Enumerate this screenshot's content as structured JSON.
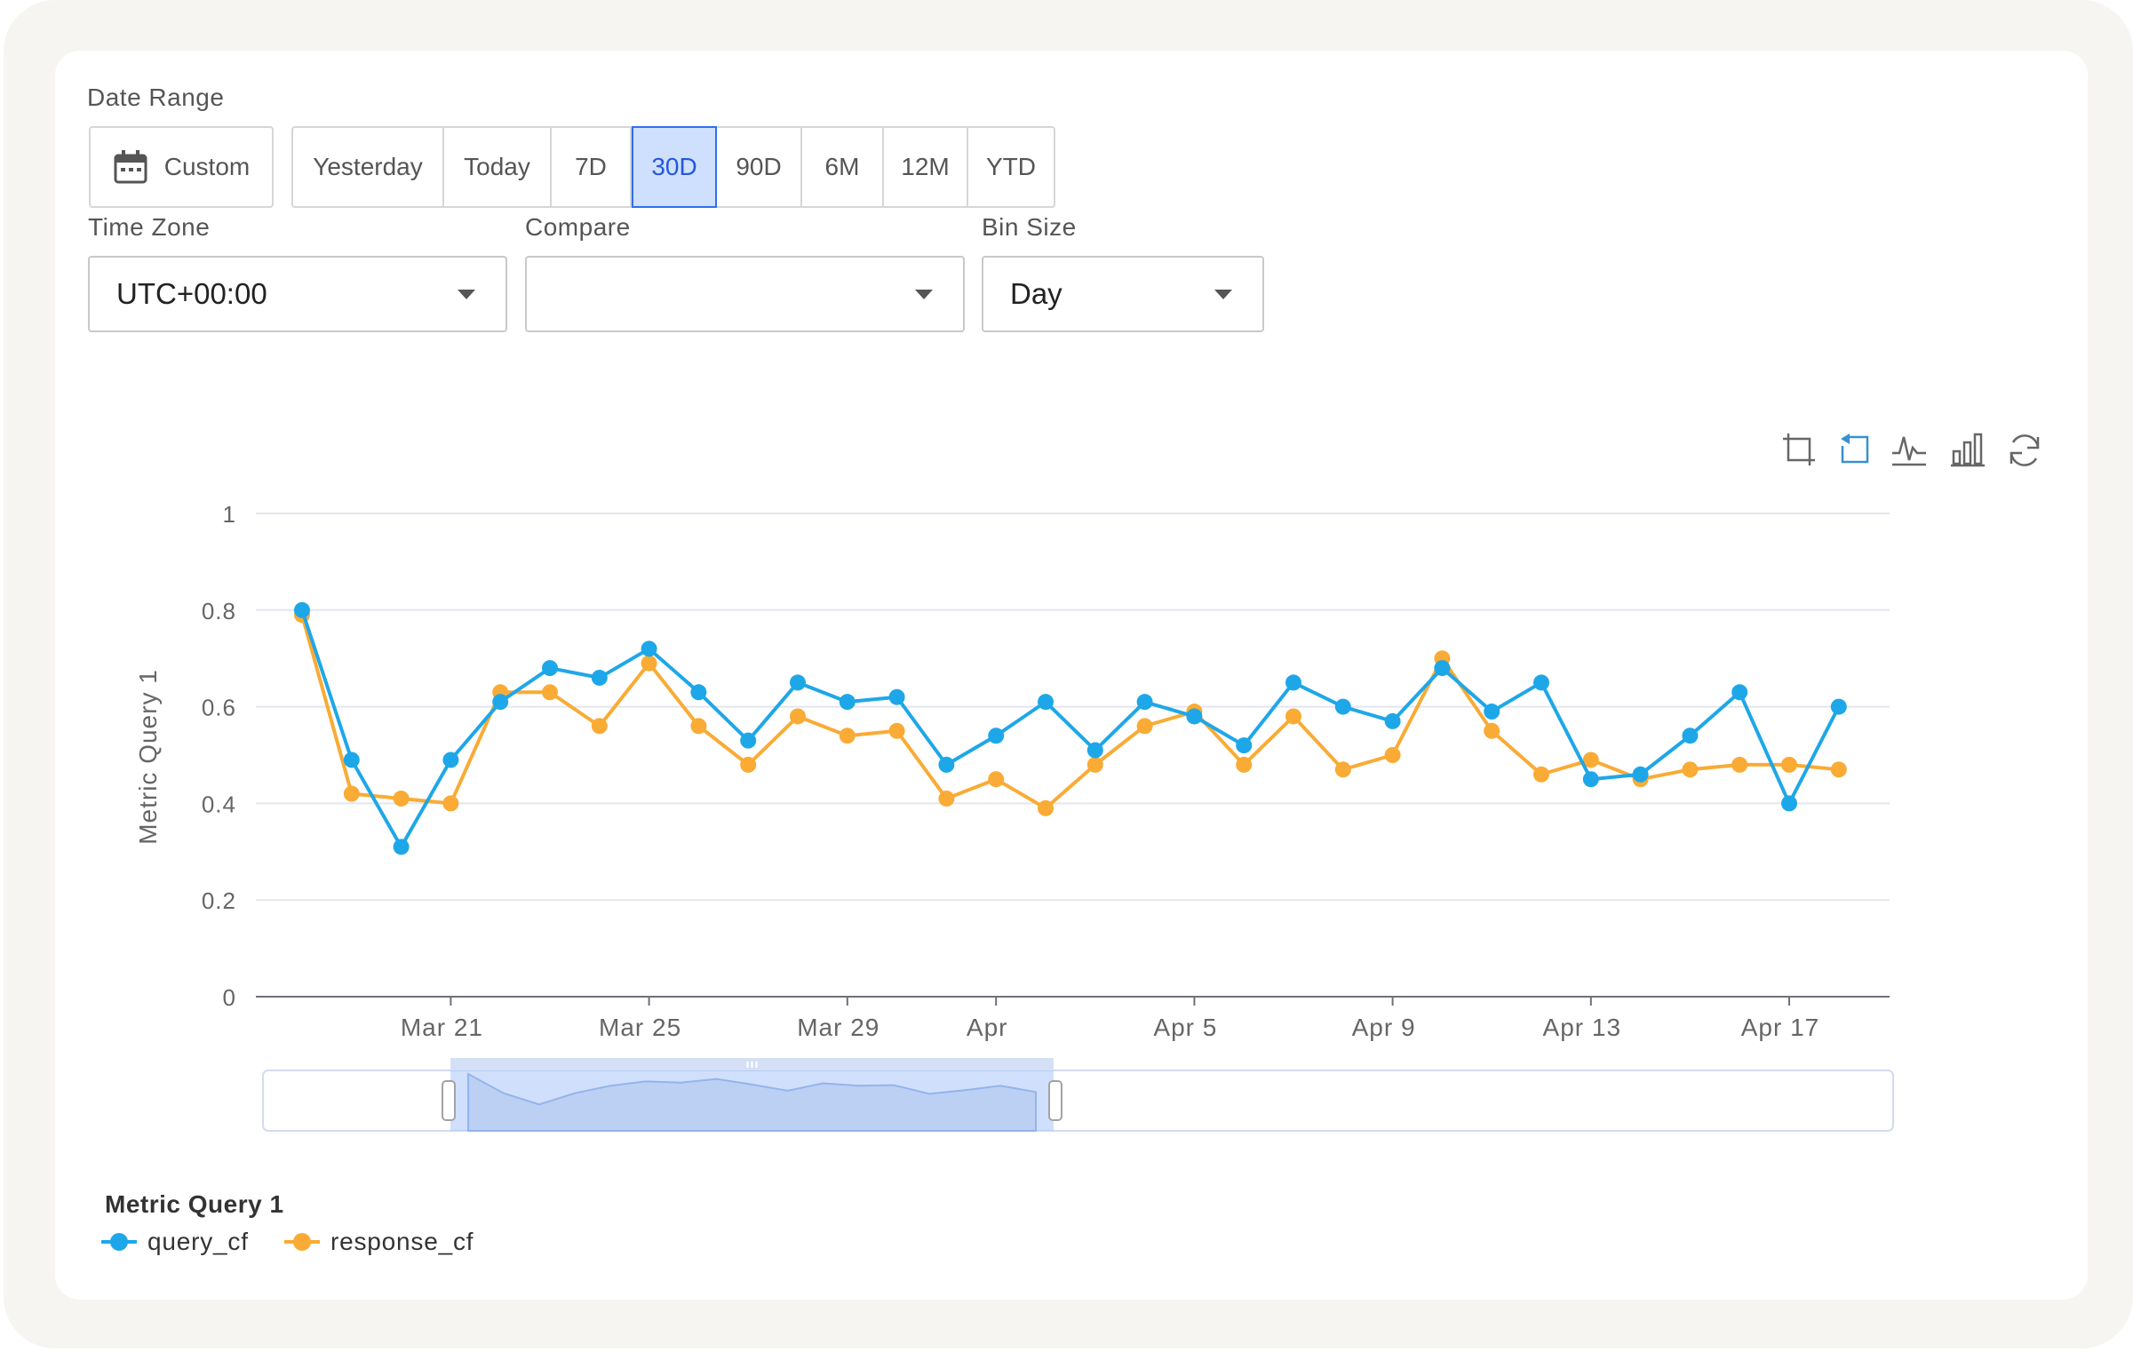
{
  "date_range": {
    "label": "Date Range",
    "custom_label": "Custom",
    "presets": [
      "Yesterday",
      "Today",
      "7D",
      "30D",
      "90D",
      "6M",
      "12M",
      "YTD"
    ],
    "active": "30D"
  },
  "time_zone": {
    "label": "Time Zone",
    "value": "UTC+00:00"
  },
  "compare": {
    "label": "Compare",
    "value": ""
  },
  "bin_size": {
    "label": "Bin Size",
    "value": "Day"
  },
  "toolbox": [
    "zoom-icon",
    "zoom-reset-icon",
    "line-chart-icon",
    "bar-chart-icon",
    "restore-icon"
  ],
  "colors": {
    "query_cf": "#1ea7e8",
    "response_cf": "#f9ab35",
    "accent": "#2f6ef2"
  },
  "legend": {
    "title": "Metric Query 1",
    "items": [
      "query_cf",
      "response_cf"
    ]
  },
  "chart_data": {
    "type": "line",
    "ylabel": "Metric Query 1",
    "ylim": [
      0,
      1
    ],
    "yticks": [
      "0",
      "0.2",
      "0.4",
      "0.6",
      "0.8",
      "1"
    ],
    "x_tick_labels": [
      "Mar 21",
      "Mar 25",
      "Mar 29",
      "Apr",
      "Apr 5",
      "Apr 9",
      "Apr 13",
      "Apr 17"
    ],
    "x": [
      "Mar 18",
      "Mar 19",
      "Mar 20",
      "Mar 21",
      "Mar 22",
      "Mar 23",
      "Mar 24",
      "Mar 25",
      "Mar 26",
      "Mar 27",
      "Mar 28",
      "Mar 29",
      "Mar 30",
      "Mar 31",
      "Apr 1",
      "Apr 2",
      "Apr 3",
      "Apr 4",
      "Apr 5",
      "Apr 6",
      "Apr 7",
      "Apr 8",
      "Apr 9",
      "Apr 10",
      "Apr 11",
      "Apr 12",
      "Apr 13",
      "Apr 14",
      "Apr 15",
      "Apr 16",
      "Apr 17",
      "Apr 18"
    ],
    "series": [
      {
        "name": "query_cf",
        "values": [
          0.8,
          0.49,
          0.31,
          0.49,
          0.61,
          0.68,
          0.66,
          0.72,
          0.63,
          0.53,
          0.65,
          0.61,
          0.62,
          0.48,
          0.54,
          0.61,
          0.51,
          0.61,
          0.58,
          0.52,
          0.65,
          0.6,
          0.57,
          0.68,
          0.59,
          0.65,
          0.45,
          0.46,
          0.54,
          0.63,
          0.4,
          0.6
        ]
      },
      {
        "name": "response_cf",
        "values": [
          0.79,
          0.42,
          0.41,
          0.4,
          0.63,
          0.63,
          0.56,
          0.69,
          0.56,
          0.48,
          0.58,
          0.54,
          0.55,
          0.41,
          0.45,
          0.39,
          0.48,
          0.56,
          0.59,
          0.48,
          0.58,
          0.47,
          0.5,
          0.7,
          0.55,
          0.46,
          0.49,
          0.45,
          0.47,
          0.48,
          0.48,
          0.47
        ]
      }
    ],
    "zoom_window": [
      0.115,
      0.485
    ],
    "legend_position": "bottom-left",
    "grid": true
  }
}
